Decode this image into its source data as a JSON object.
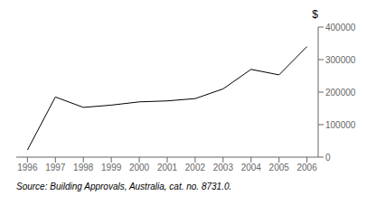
{
  "chart_data": {
    "type": "line",
    "ylabel": "$",
    "source": "Source: Building Approvals, Australia, cat. no. 8731.0.",
    "x": [
      1996,
      1997,
      1998,
      1999,
      2000,
      2001,
      2002,
      2003,
      2004,
      2005,
      2006
    ],
    "values": [
      22000,
      185000,
      153000,
      160000,
      170000,
      173000,
      180000,
      210000,
      270000,
      253000,
      340000
    ],
    "color": "#000000",
    "xlim": [
      1995.6,
      2006.4
    ],
    "xticks": [
      1996,
      1997,
      1998,
      1999,
      2000,
      2001,
      2002,
      2003,
      2004,
      2005,
      2006
    ],
    "ylim": [
      0,
      400000
    ],
    "yticks": [
      0,
      100000,
      200000,
      300000,
      400000
    ],
    "grid": false
  }
}
